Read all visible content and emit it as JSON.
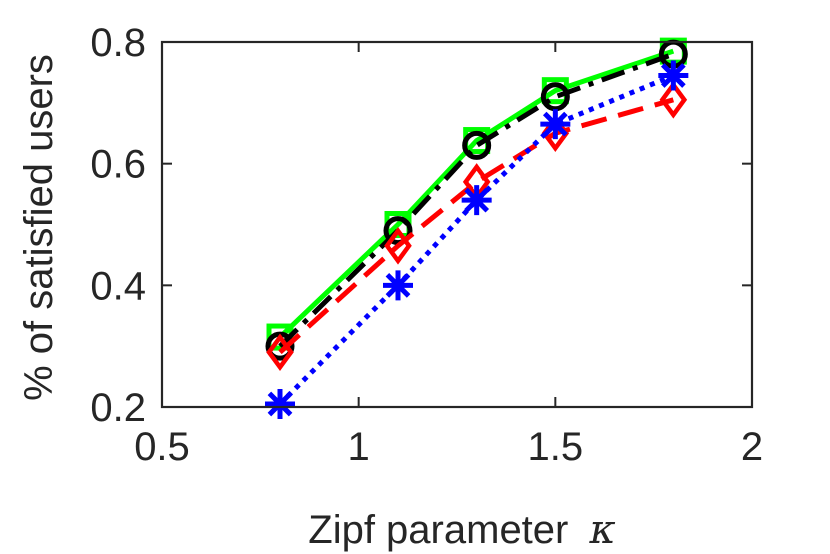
{
  "chart_data": {
    "type": "line",
    "title": "",
    "xlabel": "Zipf parameter",
    "xlabel_symbol": "κ",
    "ylabel": "% of satisfied users",
    "xlim": [
      0.5,
      2
    ],
    "ylim": [
      0.2,
      0.8
    ],
    "xticks": [
      0.5,
      1,
      1.5,
      2
    ],
    "yticks": [
      0.2,
      0.4,
      0.6,
      0.8
    ],
    "xtick_labels": [
      "0.5",
      "1",
      "1.5",
      "2"
    ],
    "ytick_labels": [
      "0.2",
      "0.4",
      "0.6",
      "0.8"
    ],
    "grid": false,
    "x": [
      0.8,
      1.1,
      1.3,
      1.5,
      1.8
    ],
    "series": [
      {
        "name": "green-square-solid",
        "color": "#00ff00",
        "marker": "square",
        "dash": "solid",
        "values": [
          0.315,
          0.5,
          0.638,
          0.72,
          0.785
        ]
      },
      {
        "name": "black-circle-dashdot",
        "color": "#000000",
        "marker": "circle",
        "dash": "dashdot",
        "values": [
          0.3,
          0.49,
          0.63,
          0.71,
          0.78
        ]
      },
      {
        "name": "red-diamond-dashed",
        "color": "#ff0000",
        "marker": "diamond",
        "dash": "dashed",
        "values": [
          0.29,
          0.465,
          0.57,
          0.65,
          0.705
        ]
      },
      {
        "name": "blue-asterisk-dotted",
        "color": "#0000ff",
        "marker": "asterisk",
        "dash": "dotted",
        "values": [
          0.205,
          0.4,
          0.54,
          0.665,
          0.745
        ]
      }
    ]
  }
}
